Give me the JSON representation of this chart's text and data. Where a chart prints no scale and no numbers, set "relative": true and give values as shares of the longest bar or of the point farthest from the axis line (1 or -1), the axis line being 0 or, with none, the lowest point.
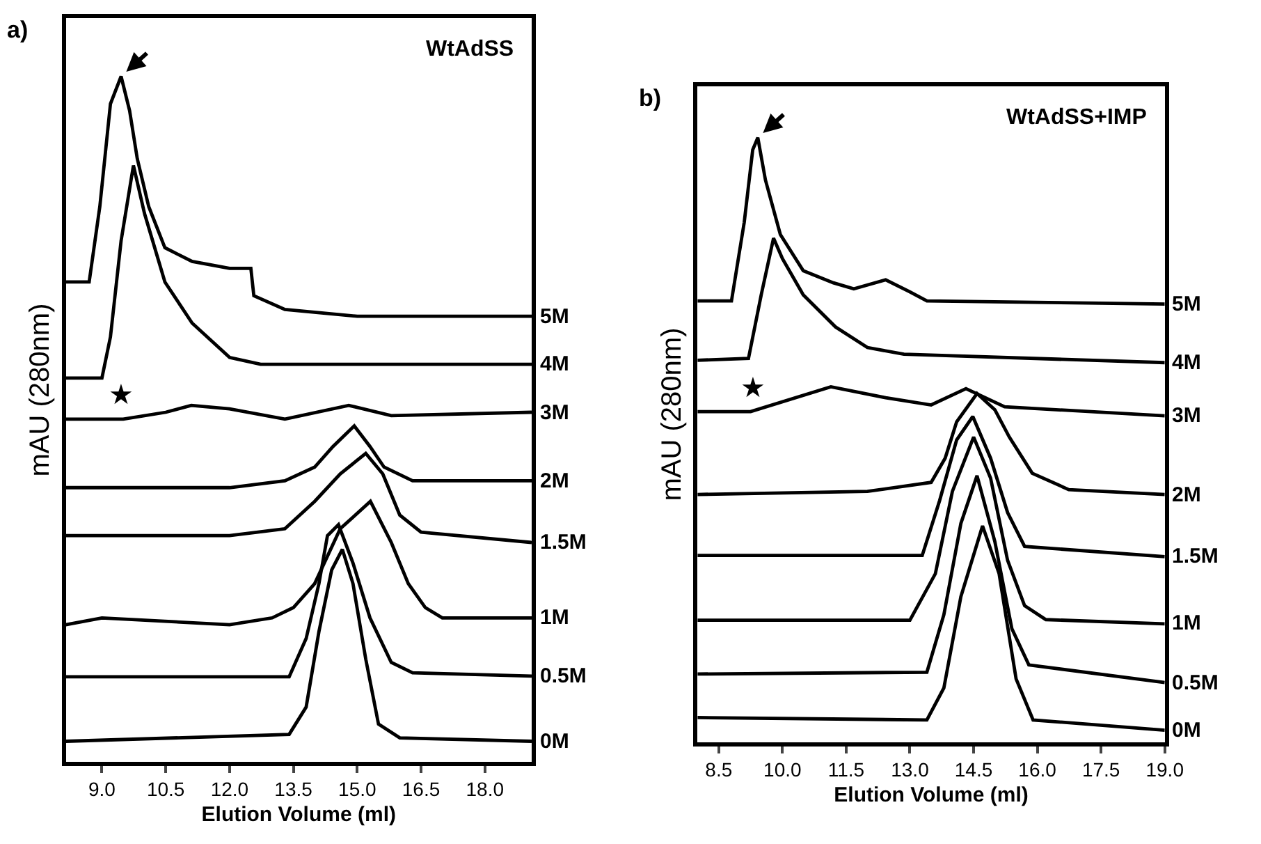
{
  "chart_data": [
    {
      "type": "line",
      "title": "WtAdSS",
      "xlabel": "Elution Volume (ml)",
      "ylabel": "mAU (280nm)",
      "relative": true,
      "marker": "none",
      "line_style": "solid",
      "annotations": [
        "a)",
        "★"
      ],
      "xlim": [
        8.15,
        19.1
      ],
      "xticks": [
        {
          "value": 9,
          "label": "9.0"
        },
        {
          "value": 10.5,
          "label": "10.5"
        },
        {
          "value": 12,
          "label": "12.0"
        },
        {
          "value": 13.5,
          "label": "13.5"
        },
        {
          "value": 15,
          "label": "15.0"
        },
        {
          "value": 16.5,
          "label": "16.5"
        },
        {
          "value": 18,
          "label": "18.0"
        }
      ],
      "series": [
        {
          "name": "5M",
          "color": "#000000",
          "x": [
            8.15,
            8.7,
            8.95,
            9.2,
            9.45,
            9.65,
            9.83,
            10.1,
            10.48,
            11.12,
            12.0,
            12.5,
            12.57,
            13.3,
            15.0,
            19.1
          ],
          "values": [
            0.7,
            0.7,
            0.81,
            0.96,
            1.0,
            0.95,
            0.88,
            0.81,
            0.75,
            0.73,
            0.72,
            0.72,
            0.68,
            0.66,
            0.65,
            0.65
          ]
        },
        {
          "name": "4M",
          "color": "#000000",
          "x": [
            8.15,
            9.0,
            9.2,
            9.45,
            9.74,
            10.0,
            10.48,
            11.12,
            12.0,
            12.73,
            19.1
          ],
          "values": [
            0.56,
            0.56,
            0.62,
            0.76,
            0.87,
            0.8,
            0.7,
            0.64,
            0.59,
            0.58,
            0.58
          ]
        },
        {
          "name": "3M",
          "color": "#000000",
          "x": [
            8.15,
            9.5,
            10.5,
            11.1,
            12.0,
            13.3,
            14.8,
            15.8,
            19.1
          ],
          "values": [
            0.5,
            0.5,
            0.51,
            0.52,
            0.515,
            0.5,
            0.52,
            0.505,
            0.51
          ]
        },
        {
          "name": "2M",
          "color": "#000000",
          "x": [
            8.15,
            12.0,
            13.3,
            14.0,
            14.43,
            14.93,
            15.3,
            15.63,
            16.3,
            19.1
          ],
          "values": [
            0.4,
            0.4,
            0.41,
            0.43,
            0.46,
            0.49,
            0.46,
            0.43,
            0.41,
            0.41
          ]
        },
        {
          "name": "1.5M",
          "color": "#000000",
          "x": [
            8.15,
            9.0,
            12.0,
            13.3,
            14.0,
            14.6,
            15.2,
            15.6,
            16.0,
            16.5,
            19.1
          ],
          "values": [
            0.33,
            0.33,
            0.33,
            0.34,
            0.38,
            0.42,
            0.45,
            0.42,
            0.36,
            0.335,
            0.32
          ]
        },
        {
          "name": "1M",
          "color": "#000000",
          "x": [
            8.15,
            9.0,
            12.0,
            13.0,
            13.5,
            14.0,
            14.6,
            15.31,
            15.8,
            16.2,
            16.6,
            17.0,
            19.1
          ],
          "values": [
            0.2,
            0.21,
            0.2,
            0.21,
            0.225,
            0.26,
            0.34,
            0.38,
            0.32,
            0.26,
            0.225,
            0.21,
            0.21
          ]
        },
        {
          "name": "0.5M",
          "color": "#000000",
          "x": [
            8.15,
            13.4,
            13.8,
            14.1,
            14.3,
            14.56,
            14.9,
            15.3,
            15.8,
            16.3,
            19.1
          ],
          "values": [
            0.124,
            0.124,
            0.18,
            0.26,
            0.33,
            0.346,
            0.29,
            0.21,
            0.145,
            0.13,
            0.125
          ]
        },
        {
          "name": "0M",
          "color": "#000000",
          "x": [
            8.15,
            13.4,
            13.8,
            14.1,
            14.4,
            14.65,
            14.9,
            15.2,
            15.5,
            16.0,
            19.1
          ],
          "values": [
            0.03,
            0.04,
            0.08,
            0.19,
            0.28,
            0.31,
            0.26,
            0.15,
            0.055,
            0.035,
            0.03
          ]
        }
      ]
    },
    {
      "type": "line",
      "title": "WtAdSS+IMP",
      "xlabel": "Elution Volume (ml)",
      "ylabel": "mAU (280nm)",
      "relative": true,
      "marker": "none",
      "line_style": "solid",
      "annotations": [
        "b)",
        "★"
      ],
      "xlim": [
        8.0,
        19.0
      ],
      "xticks": [
        {
          "value": 8.5,
          "label": "8.5"
        },
        {
          "value": 10,
          "label": "10.0"
        },
        {
          "value": 11.5,
          "label": "11.5"
        },
        {
          "value": 13,
          "label": "13.0"
        },
        {
          "value": 14.5,
          "label": "14.5"
        },
        {
          "value": 16,
          "label": "16.0"
        },
        {
          "value": 17.5,
          "label": "17.5"
        },
        {
          "value": 19,
          "label": "19.0"
        }
      ],
      "series": [
        {
          "name": "5M",
          "color": "#000000",
          "x": [
            8.0,
            8.8,
            9.1,
            9.3,
            9.42,
            9.6,
            9.95,
            10.49,
            11.2,
            11.68,
            12.43,
            13.0,
            13.4,
            19.0
          ],
          "values": [
            0.73,
            0.73,
            0.86,
            0.98,
            1.0,
            0.93,
            0.84,
            0.78,
            0.76,
            0.75,
            0.765,
            0.745,
            0.73,
            0.725
          ]
        },
        {
          "name": "4M",
          "color": "#000000",
          "x": [
            8.0,
            9.2,
            9.5,
            9.79,
            10.0,
            10.49,
            11.25,
            12.0,
            12.86,
            19.0
          ],
          "values": [
            0.632,
            0.635,
            0.74,
            0.834,
            0.8,
            0.74,
            0.687,
            0.653,
            0.642,
            0.628
          ]
        },
        {
          "name": "3M",
          "color": "#000000",
          "x": [
            8.0,
            9.25,
            11.14,
            12.43,
            13.5,
            14.32,
            15.23,
            19.0
          ],
          "values": [
            0.547,
            0.547,
            0.588,
            0.57,
            0.558,
            0.585,
            0.555,
            0.54
          ]
        },
        {
          "name": "2M",
          "color": "#000000",
          "x": [
            8.0,
            12.0,
            13.5,
            13.83,
            14.1,
            14.58,
            15.0,
            15.34,
            15.88,
            16.74,
            19.0
          ],
          "values": [
            0.41,
            0.415,
            0.43,
            0.47,
            0.53,
            0.577,
            0.55,
            0.505,
            0.445,
            0.418,
            0.41
          ]
        },
        {
          "name": "1.5M",
          "color": "#000000",
          "x": [
            8.0,
            13.29,
            13.7,
            14.1,
            14.48,
            14.9,
            15.3,
            15.7,
            19.0
          ],
          "values": [
            0.309,
            0.309,
            0.4,
            0.5,
            0.539,
            0.47,
            0.38,
            0.324,
            0.307
          ]
        },
        {
          "name": "1M",
          "color": "#000000",
          "x": [
            8.0,
            13.0,
            13.6,
            14.0,
            14.5,
            14.9,
            15.3,
            15.7,
            16.2,
            19.0
          ],
          "values": [
            0.202,
            0.202,
            0.279,
            0.415,
            0.505,
            0.437,
            0.301,
            0.226,
            0.203,
            0.196
          ]
        },
        {
          "name": "0.5M",
          "color": "#000000",
          "x": [
            8.0,
            13.4,
            13.8,
            14.2,
            14.58,
            15.0,
            15.4,
            15.8,
            19.0
          ],
          "values": [
            0.113,
            0.116,
            0.211,
            0.362,
            0.441,
            0.332,
            0.188,
            0.128,
            0.099
          ]
        },
        {
          "name": "0M",
          "color": "#000000",
          "x": [
            8.0,
            13.4,
            13.8,
            14.2,
            14.71,
            15.1,
            15.5,
            15.9,
            19.0
          ],
          "values": [
            0.041,
            0.037,
            0.09,
            0.241,
            0.358,
            0.279,
            0.105,
            0.037,
            0.02
          ]
        }
      ]
    }
  ]
}
